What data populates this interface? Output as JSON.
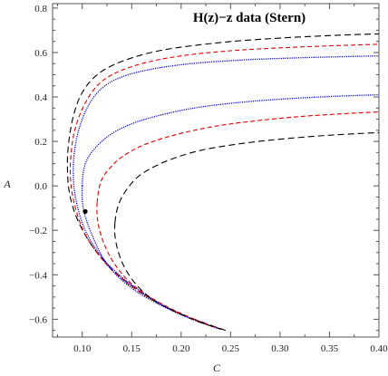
{
  "chart_data": {
    "type": "line",
    "title": "H(z)−z data (Stern)",
    "xlabel": "C",
    "ylabel": "A",
    "xlim": [
      0.07,
      0.4
    ],
    "ylim": [
      -0.68,
      0.82
    ],
    "x_ticks": [
      0.1,
      0.15,
      0.2,
      0.25,
      0.3,
      0.35,
      0.4
    ],
    "x_tick_labels": [
      "0.10",
      "0.15",
      "0.20",
      "0.25",
      "0.30",
      "0.35",
      "0.40"
    ],
    "y_ticks": [
      -0.6,
      -0.4,
      -0.2,
      0.0,
      0.2,
      0.4,
      0.6,
      0.8
    ],
    "y_tick_labels": [
      "−0.6",
      "−0.4",
      "−0.2",
      "0.0",
      "0.2",
      "0.4",
      "0.6",
      "0.8"
    ],
    "grid": false,
    "series": [
      {
        "style": "dashed",
        "color": "#000000",
        "points": [
          [
            0.245,
            -0.65
          ],
          [
            0.23,
            -0.627
          ],
          [
            0.21,
            -0.594
          ],
          [
            0.19,
            -0.557
          ],
          [
            0.17,
            -0.509
          ],
          [
            0.15,
            -0.45
          ],
          [
            0.13,
            -0.375
          ],
          [
            0.11,
            -0.27
          ],
          [
            0.095,
            -0.15
          ],
          [
            0.087,
            -0.03
          ],
          [
            0.085,
            0.1
          ],
          [
            0.087,
            0.22
          ],
          [
            0.092,
            0.33
          ],
          [
            0.1,
            0.42
          ],
          [
            0.115,
            0.5
          ],
          [
            0.14,
            0.56
          ],
          [
            0.18,
            0.61
          ],
          [
            0.24,
            0.645
          ],
          [
            0.3,
            0.665
          ],
          [
            0.36,
            0.678
          ],
          [
            0.4,
            0.684
          ]
        ]
      },
      {
        "style": "dashed",
        "color": "#e00000",
        "points": [
          [
            0.24,
            -0.645
          ],
          [
            0.22,
            -0.615
          ],
          [
            0.2,
            -0.578
          ],
          [
            0.18,
            -0.535
          ],
          [
            0.16,
            -0.483
          ],
          [
            0.14,
            -0.418
          ],
          [
            0.12,
            -0.33
          ],
          [
            0.102,
            -0.21
          ],
          [
            0.092,
            -0.08
          ],
          [
            0.088,
            0.04
          ],
          [
            0.089,
            0.16
          ],
          [
            0.093,
            0.26
          ],
          [
            0.101,
            0.355
          ],
          [
            0.113,
            0.44
          ],
          [
            0.13,
            0.5
          ],
          [
            0.16,
            0.55
          ],
          [
            0.2,
            0.585
          ],
          [
            0.25,
            0.608
          ],
          [
            0.3,
            0.621
          ],
          [
            0.35,
            0.63
          ],
          [
            0.4,
            0.637
          ]
        ]
      },
      {
        "style": "dotted",
        "color": "#0000dd",
        "points": [
          [
            0.24,
            -0.645
          ],
          [
            0.22,
            -0.614
          ],
          [
            0.2,
            -0.577
          ],
          [
            0.18,
            -0.532
          ],
          [
            0.16,
            -0.478
          ],
          [
            0.14,
            -0.41
          ],
          [
            0.12,
            -0.322
          ],
          [
            0.103,
            -0.2
          ],
          [
            0.094,
            -0.07
          ],
          [
            0.091,
            0.04
          ],
          [
            0.092,
            0.15
          ],
          [
            0.097,
            0.26
          ],
          [
            0.106,
            0.36
          ],
          [
            0.12,
            0.44
          ],
          [
            0.14,
            0.49
          ],
          [
            0.17,
            0.525
          ],
          [
            0.21,
            0.55
          ],
          [
            0.26,
            0.566
          ],
          [
            0.31,
            0.575
          ],
          [
            0.36,
            0.581
          ],
          [
            0.4,
            0.585
          ]
        ]
      },
      {
        "style": "dotted",
        "color": "#0000dd",
        "points": [
          [
            0.1,
            -0.0
          ],
          [
            0.1,
            -0.06
          ],
          [
            0.102,
            -0.12
          ],
          [
            0.108,
            -0.2
          ],
          [
            0.118,
            -0.3
          ],
          [
            0.13,
            -0.38
          ],
          [
            0.15,
            -0.46
          ],
          [
            0.17,
            -0.515
          ],
          [
            0.19,
            -0.56
          ],
          [
            0.21,
            -0.598
          ],
          [
            0.23,
            -0.63
          ],
          [
            0.24,
            -0.645
          ],
          null,
          [
            0.1,
            -0.0
          ],
          [
            0.101,
            0.06
          ],
          [
            0.105,
            0.12
          ],
          [
            0.113,
            0.17
          ],
          [
            0.125,
            0.22
          ],
          [
            0.14,
            0.26
          ],
          [
            0.16,
            0.295
          ],
          [
            0.19,
            0.33
          ],
          [
            0.22,
            0.355
          ],
          [
            0.26,
            0.376
          ],
          [
            0.3,
            0.39
          ],
          [
            0.35,
            0.402
          ],
          [
            0.4,
            0.41
          ]
        ]
      },
      {
        "style": "dashed",
        "color": "#e00000",
        "points": [
          [
            0.115,
            -0.075
          ],
          [
            0.115,
            -0.13
          ],
          [
            0.117,
            -0.19
          ],
          [
            0.122,
            -0.26
          ],
          [
            0.131,
            -0.34
          ],
          [
            0.145,
            -0.42
          ],
          [
            0.16,
            -0.475
          ],
          [
            0.18,
            -0.53
          ],
          [
            0.2,
            -0.574
          ],
          [
            0.22,
            -0.612
          ],
          [
            0.24,
            -0.645
          ],
          null,
          [
            0.115,
            -0.075
          ],
          [
            0.117,
            -0.01
          ],
          [
            0.121,
            0.04
          ],
          [
            0.13,
            0.09
          ],
          [
            0.14,
            0.13
          ],
          [
            0.16,
            0.18
          ],
          [
            0.19,
            0.225
          ],
          [
            0.23,
            0.265
          ],
          [
            0.27,
            0.29
          ],
          [
            0.32,
            0.312
          ],
          [
            0.37,
            0.326
          ],
          [
            0.4,
            0.333
          ]
        ]
      },
      {
        "style": "dashed",
        "color": "#000000",
        "points": [
          [
            0.133,
            -0.165
          ],
          [
            0.133,
            -0.22
          ],
          [
            0.136,
            -0.29
          ],
          [
            0.142,
            -0.36
          ],
          [
            0.152,
            -0.43
          ],
          [
            0.165,
            -0.49
          ],
          [
            0.18,
            -0.535
          ],
          [
            0.2,
            -0.578
          ],
          [
            0.22,
            -0.615
          ],
          [
            0.245,
            -0.65
          ],
          null,
          [
            0.133,
            -0.165
          ],
          [
            0.135,
            -0.11
          ],
          [
            0.139,
            -0.06
          ],
          [
            0.146,
            -0.01
          ],
          [
            0.156,
            0.04
          ],
          [
            0.17,
            0.08
          ],
          [
            0.19,
            0.12
          ],
          [
            0.22,
            0.16
          ],
          [
            0.26,
            0.19
          ],
          [
            0.3,
            0.21
          ],
          [
            0.35,
            0.228
          ],
          [
            0.4,
            0.24
          ]
        ]
      }
    ],
    "marker": {
      "x": 0.103,
      "y": -0.115,
      "color": "#000000"
    }
  }
}
